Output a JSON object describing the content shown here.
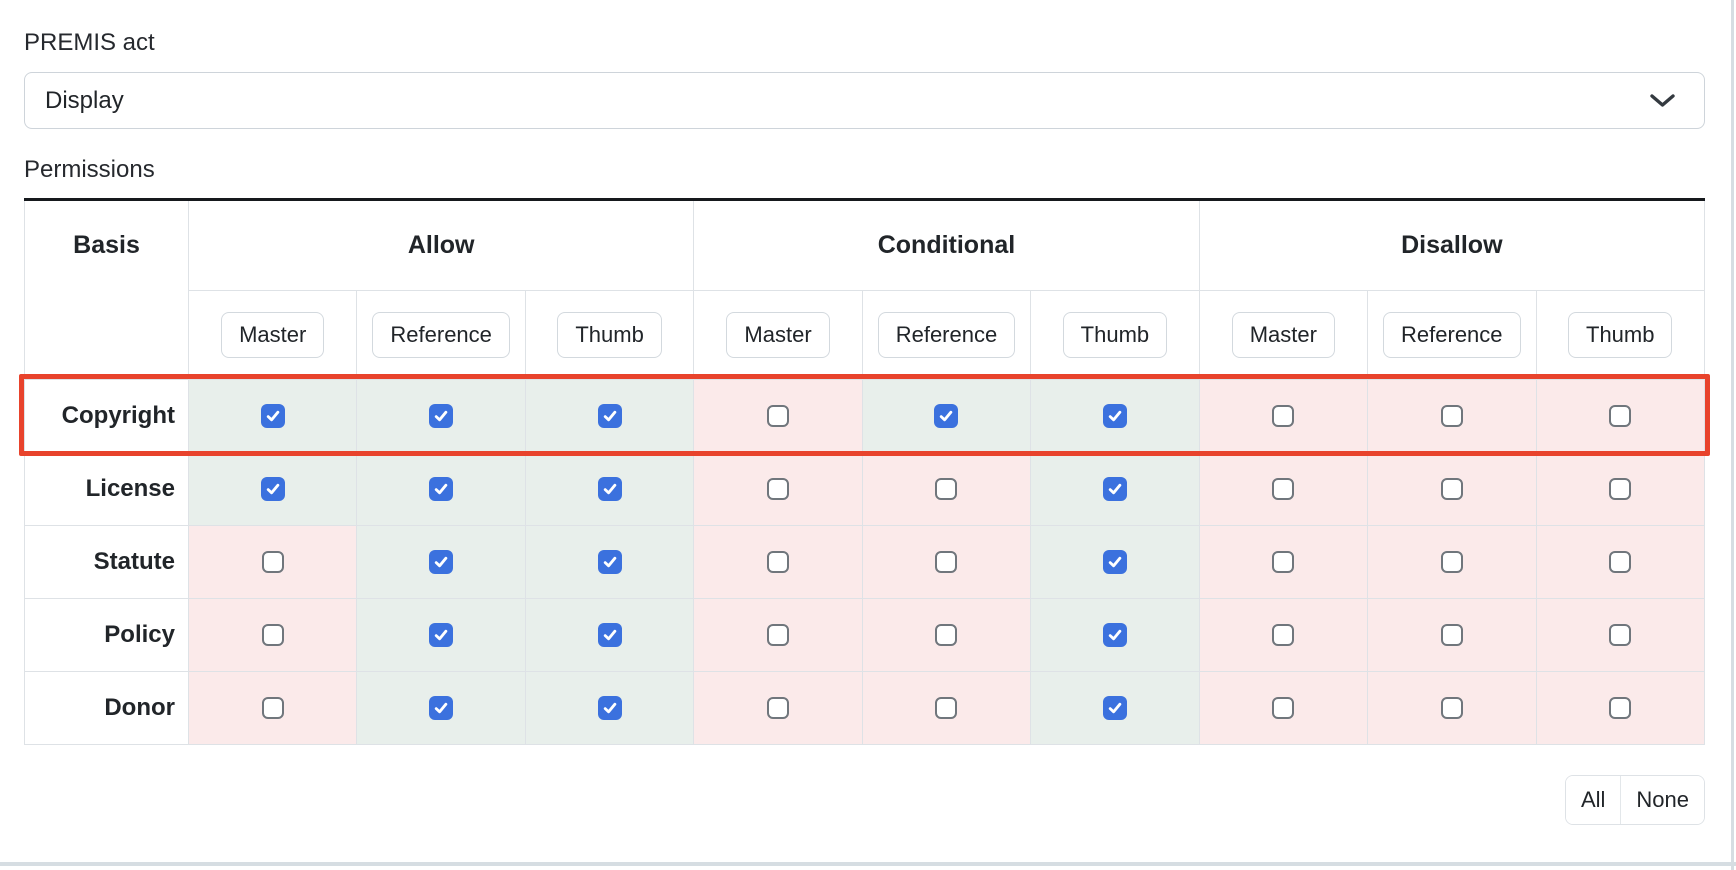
{
  "premis_act": {
    "label": "PREMIS act",
    "selected_option": "Display"
  },
  "permissions": {
    "label": "Permissions",
    "table": {
      "basis_header": "Basis",
      "groups": [
        {
          "label": "Allow"
        },
        {
          "label": "Conditional"
        },
        {
          "label": "Disallow"
        }
      ],
      "media": [
        "Master",
        "Reference",
        "Thumb"
      ],
      "rows": [
        {
          "basis": "Copyright",
          "checks": [
            true,
            true,
            true,
            false,
            true,
            true,
            false,
            false,
            false
          ],
          "highlighted": true
        },
        {
          "basis": "License",
          "checks": [
            true,
            true,
            true,
            false,
            false,
            true,
            false,
            false,
            false
          ],
          "highlighted": false
        },
        {
          "basis": "Statute",
          "checks": [
            false,
            true,
            true,
            false,
            false,
            true,
            false,
            false,
            false
          ],
          "highlighted": false
        },
        {
          "basis": "Policy",
          "checks": [
            false,
            true,
            true,
            false,
            false,
            true,
            false,
            false,
            false
          ],
          "highlighted": false
        },
        {
          "basis": "Donor",
          "checks": [
            false,
            true,
            true,
            false,
            false,
            true,
            false,
            false,
            false
          ],
          "highlighted": false
        }
      ]
    },
    "actions": {
      "all_label": "All",
      "none_label": "None"
    }
  },
  "icons": {
    "select_icon": "chevron-down-icon",
    "checked_icon": "checkmark-icon"
  },
  "colors": {
    "checked_cell_bg": "#e8efeb",
    "unchecked_cell_bg": "#fbeaea",
    "checkbox_blue": "#3b71de",
    "highlight_red": "#e8432c",
    "table_top_border": "#16191d",
    "grid_line": "#dee2e6"
  }
}
